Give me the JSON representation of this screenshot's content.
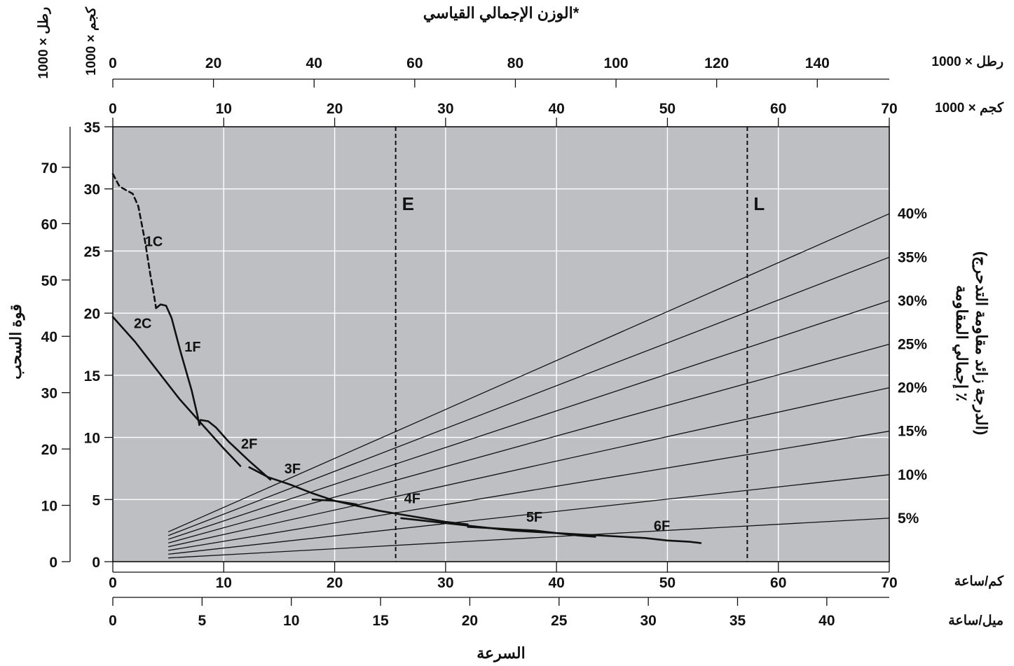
{
  "chart_data": {
    "type": "line",
    "title": "الوزن الإجمالي القياسي*",
    "xlabel": "السرعة",
    "ylabel_left": "قوة السحب",
    "ylabel_right": "إجمالي المقاومة ٪",
    "ylabel_right_sub": "(الدرجة زائد مقاومة التدحرج)",
    "colors": {
      "plot_bg": "#bdbfc2",
      "grid": "#ffffff",
      "ink": "#111111"
    },
    "grid": true,
    "axes": {
      "speed_kmh": {
        "unit_label": "كم/ساعة",
        "range": [
          0,
          70
        ],
        "ticks": [
          "0",
          "10",
          "20",
          "30",
          "40",
          "50",
          "60",
          "70"
        ]
      },
      "speed_mph": {
        "unit_label": "ميل/ساعة",
        "range": [
          0,
          43.5
        ],
        "ticks": [
          "0",
          "5",
          "10",
          "15",
          "20",
          "25",
          "30",
          "35",
          "40"
        ]
      },
      "pull_kg": {
        "unit_label": "كجم × 1000",
        "range": [
          0,
          35
        ],
        "ticks": [
          "0",
          "5",
          "10",
          "15",
          "20",
          "25",
          "30",
          "35"
        ]
      },
      "pull_lb": {
        "unit_label": "رطل × 1000",
        "range": [
          0,
          77.2
        ],
        "ticks": [
          "0",
          "10",
          "20",
          "30",
          "40",
          "50",
          "60",
          "70"
        ]
      },
      "weight_kg": {
        "unit_label": "كجم × 1000",
        "range": [
          0,
          70
        ],
        "ticks": [
          "0",
          "10",
          "20",
          "30",
          "40",
          "50",
          "60",
          "70"
        ]
      },
      "weight_lb": {
        "unit_label": "رطل × 1000",
        "range": [
          0,
          154.3
        ],
        "ticks": [
          "0",
          "20",
          "40",
          "60",
          "80",
          "100",
          "120",
          "140"
        ]
      }
    },
    "markers": [
      {
        "label": "E",
        "weight_kg": 25.5
      },
      {
        "label": "L",
        "weight_kg": 57.2
      }
    ],
    "resistance_lines": [
      {
        "label": "5%",
        "y_at_x5": 0.3,
        "y_at_x70": 3.5
      },
      {
        "label": "10%",
        "y_at_x5": 0.6,
        "y_at_x70": 7.0
      },
      {
        "label": "15%",
        "y_at_x5": 0.9,
        "y_at_x70": 10.5
      },
      {
        "label": "20%",
        "y_at_x5": 1.2,
        "y_at_x70": 14.0
      },
      {
        "label": "25%",
        "y_at_x5": 1.5,
        "y_at_x70": 17.5
      },
      {
        "label": "30%",
        "y_at_x5": 1.8,
        "y_at_x70": 21.0
      },
      {
        "label": "35%",
        "y_at_x5": 2.1,
        "y_at_x70": 24.5
      },
      {
        "label": "40%",
        "y_at_x5": 2.4,
        "y_at_x70": 28.0
      }
    ],
    "series": [
      {
        "name": "1C",
        "style": "dashed",
        "points": [
          [
            0,
            31.2
          ],
          [
            0.6,
            30.2
          ],
          [
            1.8,
            29.6
          ],
          [
            2.3,
            28.6
          ],
          [
            2.9,
            25.8
          ],
          [
            3.4,
            23
          ],
          [
            3.7,
            21.5
          ],
          [
            3.9,
            20.4
          ]
        ]
      },
      {
        "name": "1F",
        "style": "solid",
        "points": [
          [
            3.9,
            20.4
          ],
          [
            4.3,
            20.7
          ],
          [
            4.8,
            20.6
          ],
          [
            5.3,
            19.6
          ],
          [
            6.1,
            16.9
          ],
          [
            7.1,
            13.8
          ],
          [
            7.6,
            11.9
          ],
          [
            7.8,
            11.0
          ]
        ]
      },
      {
        "name": "2C",
        "style": "solid",
        "points": [
          [
            0,
            19.7
          ],
          [
            2,
            17.7
          ],
          [
            4,
            15.4
          ],
          [
            6,
            13.1
          ],
          [
            8,
            11.1
          ],
          [
            10,
            9.1
          ],
          [
            11.5,
            7.7
          ]
        ]
      },
      {
        "name": "2F",
        "style": "solid",
        "points": [
          [
            7.8,
            11.0
          ],
          [
            7.9,
            11.4
          ],
          [
            8.6,
            11.3
          ],
          [
            9.3,
            10.8
          ],
          [
            10.4,
            9.7
          ],
          [
            12.3,
            8.1
          ],
          [
            14.2,
            6.6
          ]
        ]
      },
      {
        "name": "3F",
        "style": "solid",
        "points": [
          [
            12.3,
            7.6
          ],
          [
            14,
            6.8
          ],
          [
            16,
            6.2
          ],
          [
            18,
            5.5
          ],
          [
            20,
            4.9
          ],
          [
            22,
            4.6
          ]
        ]
      },
      {
        "name": "4F",
        "style": "solid",
        "points": [
          [
            18,
            5.0
          ],
          [
            20,
            4.9
          ],
          [
            22,
            4.5
          ],
          [
            24,
            4.1
          ],
          [
            26,
            3.8
          ],
          [
            28,
            3.5
          ],
          [
            30,
            3.2
          ],
          [
            32,
            3.0
          ]
        ]
      },
      {
        "name": "5F",
        "style": "solid",
        "points": [
          [
            26,
            3.5
          ],
          [
            28,
            3.3
          ],
          [
            30,
            3.1
          ],
          [
            32,
            2.9
          ],
          [
            34,
            2.7
          ],
          [
            36,
            2.5
          ],
          [
            38,
            2.4
          ],
          [
            40,
            2.3
          ],
          [
            42,
            2.1
          ],
          [
            43.5,
            2.0
          ]
        ]
      },
      {
        "name": "6F",
        "style": "solid",
        "points": [
          [
            32,
            2.8
          ],
          [
            34,
            2.7
          ],
          [
            36,
            2.6
          ],
          [
            38,
            2.5
          ],
          [
            40,
            2.3
          ],
          [
            42,
            2.2
          ],
          [
            44,
            2.1
          ],
          [
            46,
            2.0
          ],
          [
            48,
            1.9
          ],
          [
            50,
            1.7
          ],
          [
            52,
            1.6
          ],
          [
            53,
            1.5
          ]
        ]
      }
    ],
    "curve_labels": [
      {
        "text": "1C",
        "x": 3.7,
        "y": 25.4
      },
      {
        "text": "1F",
        "x": 7.2,
        "y": 16.9
      },
      {
        "text": "2C",
        "x": 2.7,
        "y": 18.8
      },
      {
        "text": "2F",
        "x": 12.3,
        "y": 9.1
      },
      {
        "text": "3F",
        "x": 16.2,
        "y": 7.1
      },
      {
        "text": "4F",
        "x": 27.0,
        "y": 4.7
      },
      {
        "text": "5F",
        "x": 38.0,
        "y": 3.2
      },
      {
        "text": "6F",
        "x": 49.5,
        "y": 2.5
      }
    ]
  }
}
